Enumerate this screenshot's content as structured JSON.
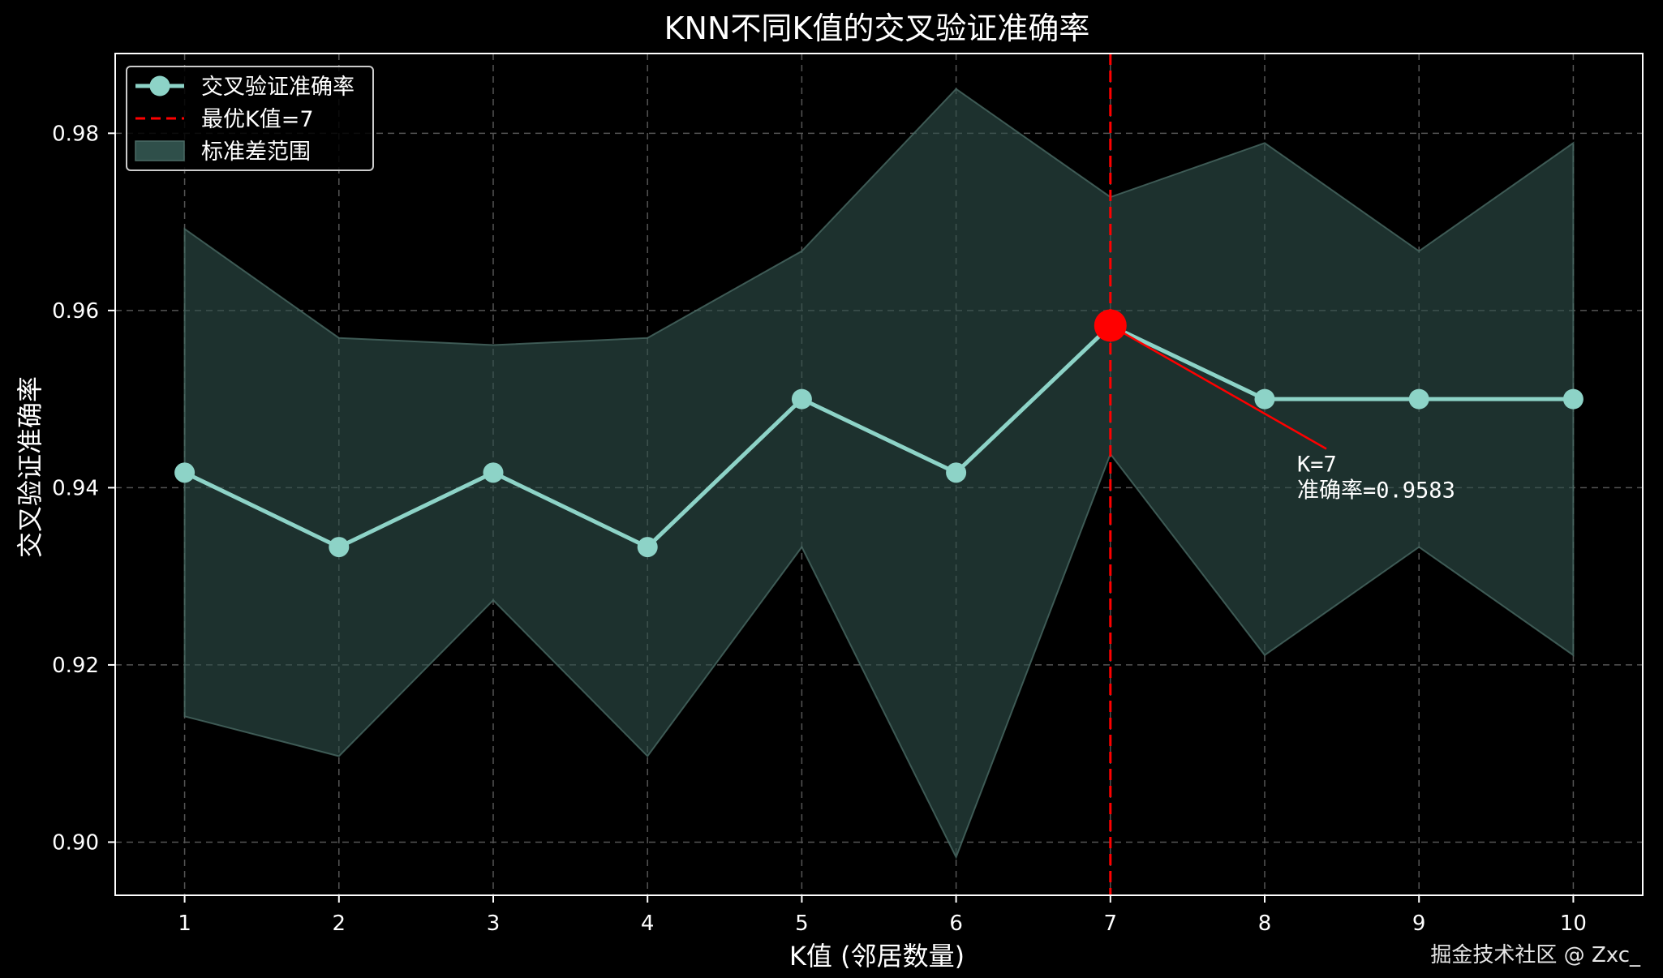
{
  "chart_data": {
    "type": "line",
    "title": "KNN不同K值的交叉验证准确率",
    "xlabel": "K值 (邻居数量)",
    "ylabel": "交叉验证准确率",
    "x": [
      1,
      2,
      3,
      4,
      5,
      6,
      7,
      8,
      9,
      10
    ],
    "xlim": [
      0.55,
      10.45
    ],
    "ylim": [
      0.894,
      0.989
    ],
    "yticks": [
      0.9,
      0.92,
      0.94,
      0.96,
      0.98
    ],
    "ytick_labels": [
      "0.90",
      "0.92",
      "0.94",
      "0.96",
      "0.98"
    ],
    "xtick_labels": [
      "1",
      "2",
      "3",
      "4",
      "5",
      "6",
      "7",
      "8",
      "9",
      "10"
    ],
    "grid": true,
    "legend_position": "top-left",
    "series": [
      {
        "name": "交叉验证准确率",
        "values": [
          0.9417,
          0.9333,
          0.9417,
          0.9333,
          0.95,
          0.9417,
          0.9583,
          0.95,
          0.95,
          0.95
        ],
        "color": "#8dd3c7"
      }
    ],
    "band": {
      "name": "标准差范围",
      "upper": [
        0.9692,
        0.9569,
        0.9561,
        0.9569,
        0.9667,
        0.985,
        0.9728,
        0.9789,
        0.9667,
        0.9789
      ],
      "lower": [
        0.9142,
        0.9097,
        0.9273,
        0.9097,
        0.9333,
        0.8983,
        0.9438,
        0.9211,
        0.9333,
        0.9211
      ],
      "color": "#2f4f4a"
    },
    "best": {
      "label": "最优K值=7",
      "k": 7,
      "accuracy": 0.9583,
      "color": "#ff0000",
      "annotation_lines": [
        "K=7",
        "准确率=0.9583"
      ],
      "annotation_anchor": [
        8.2,
        0.9442
      ]
    }
  },
  "watermark": "掘金技术社区 @ Zxc_"
}
